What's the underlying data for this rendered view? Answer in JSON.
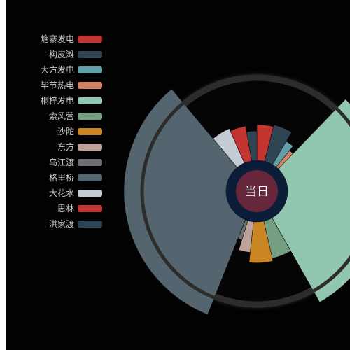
{
  "chart_data": {
    "type": "pie",
    "variant": "rose",
    "center_label": "当日",
    "colors": {
      "background": "#020202",
      "center_fill": "#66273b",
      "center_ring": "#0c1d3a",
      "outer_ring": "#2c2c2c",
      "legend_text": "#c8c8c8"
    },
    "legend_position": "left",
    "series": [
      {
        "name": "塘寨发电",
        "color": "#c23531",
        "value": 28
      },
      {
        "name": "构皮滩",
        "color": "#2f4554",
        "value": 31
      },
      {
        "name": "大方发电",
        "color": "#61a0a8",
        "value": 16
      },
      {
        "name": "毕节热电",
        "color": "#d48265",
        "value": 10
      },
      {
        "name": "桐梓发电",
        "color": "#91c7ae",
        "value": 206
      },
      {
        "name": "索风营",
        "color": "#749f83",
        "value": 32
      },
      {
        "name": "沙陀",
        "color": "#ca8622",
        "value": 37
      },
      {
        "name": "东方",
        "color": "#bda29a",
        "value": 21
      },
      {
        "name": "乌江渡",
        "color": "#6e7074",
        "value": 9
      },
      {
        "name": "格里桥",
        "color": "#546570",
        "value": 229
      },
      {
        "name": "大花水",
        "color": "#c4ccd3",
        "value": 31
      },
      {
        "name": "思林",
        "color": "#c23531",
        "value": 27
      },
      {
        "name": "洪家渡",
        "color": "#2f4554",
        "value": 19
      }
    ]
  }
}
